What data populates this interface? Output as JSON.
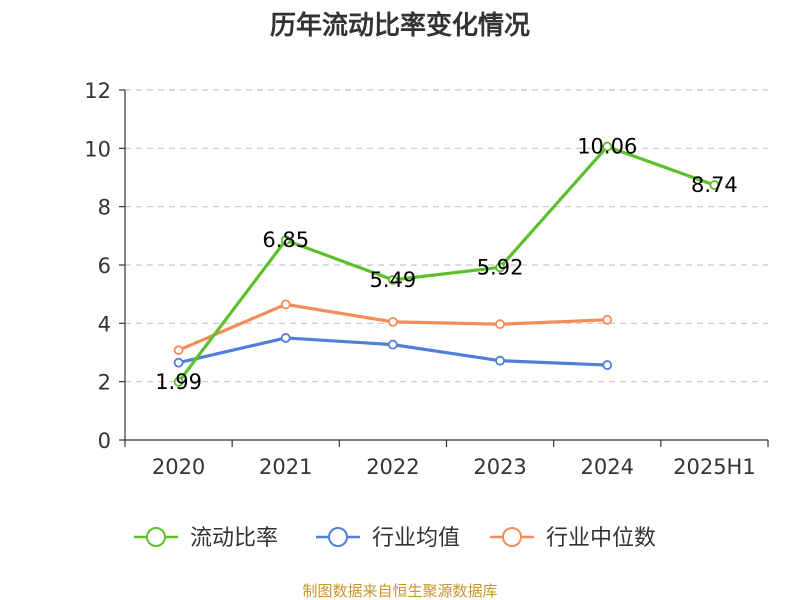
{
  "chart_data": {
    "type": "line",
    "title": "历年流动比率变化情况",
    "categories": [
      "2020",
      "2021",
      "2022",
      "2023",
      "2024",
      "2025H1"
    ],
    "ylim": [
      0,
      12
    ],
    "yticks": [
      "0",
      "2",
      "4",
      "6",
      "8",
      "10",
      "12"
    ],
    "grid": true,
    "legend_position": "bottom",
    "series": [
      {
        "name": "流动比率",
        "color": "#5cc02b",
        "values": [
          1.99,
          6.85,
          5.49,
          5.92,
          10.06,
          8.74
        ],
        "labels": [
          "1.99",
          "6.85",
          "5.49",
          "5.92",
          "10.06",
          "8.74"
        ]
      },
      {
        "name": "行业均值",
        "color": "#4f7fd8",
        "values": [
          2.65,
          3.5,
          3.27,
          2.72,
          2.57,
          null
        ]
      },
      {
        "name": "行业中位数",
        "color": "#f48c5a",
        "values": [
          3.08,
          4.65,
          4.05,
          3.97,
          4.12,
          null
        ]
      }
    ]
  },
  "source": "制图数据来自恒生聚源数据库"
}
